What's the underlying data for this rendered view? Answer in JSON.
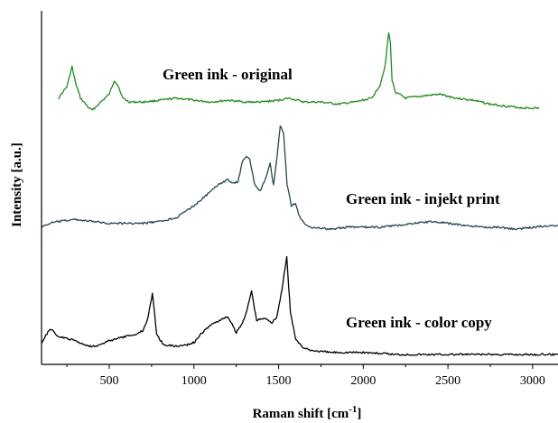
{
  "chart_data": {
    "type": "line",
    "xlabel": "Raman shift [cm",
    "xlabel_sup": "-1",
    "xlabel_end": "]",
    "ylabel": "Intensity [a.u.]",
    "xlim": [
      100,
      3150
    ],
    "ylim": [
      0,
      100
    ],
    "xticks": [
      500,
      1000,
      1500,
      2000,
      2500,
      3000
    ],
    "xtick_labels": [
      "500",
      "1000",
      "1500",
      "2000",
      "2500",
      "3000"
    ],
    "y_tick_labels": false,
    "grid": false,
    "series": [
      {
        "name": "Green ink - original",
        "color": "#1e8c1e",
        "x": [
          200,
          250,
          280,
          300,
          330,
          380,
          400,
          450,
          500,
          530,
          550,
          580,
          620,
          700,
          800,
          900,
          1000,
          1100,
          1200,
          1300,
          1400,
          1500,
          1560,
          1650,
          1750,
          1850,
          1950,
          2050,
          2100,
          2130,
          2150,
          2160,
          2170,
          2190,
          2250,
          2350,
          2450,
          2550,
          2650,
          2750,
          2850,
          2950,
          3040
        ],
        "y": [
          75.3,
          78.6,
          84.2,
          79.7,
          75.3,
          72.5,
          71.9,
          74.2,
          76.4,
          80.3,
          79.1,
          75.3,
          74.2,
          74.2,
          74.7,
          75.3,
          74.7,
          74.2,
          74.7,
          74.2,
          74.2,
          74.7,
          75.3,
          74.2,
          74.2,
          73.6,
          74.2,
          75.3,
          79.1,
          84.8,
          93.8,
          91.0,
          80.3,
          77.0,
          75.3,
          75.9,
          76.4,
          75.3,
          74.7,
          73.6,
          73.0,
          72.5,
          72.5
        ]
      },
      {
        "name": "Green ink - injekt print",
        "color": "#234650",
        "x": [
          100,
          150,
          200,
          300,
          400,
          500,
          600,
          700,
          800,
          900,
          1000,
          1100,
          1150,
          1200,
          1230,
          1260,
          1290,
          1310,
          1330,
          1360,
          1390,
          1420,
          1450,
          1470,
          1490,
          1510,
          1530,
          1550,
          1575,
          1600,
          1625,
          1660,
          1700,
          1800,
          1900,
          2000,
          2100,
          2200,
          2300,
          2400,
          2500,
          2600,
          2700,
          2800,
          2900,
          3000,
          3100,
          3150
        ],
        "y": [
          38.8,
          39.9,
          40.4,
          41.0,
          40.4,
          39.9,
          39.9,
          39.9,
          40.4,
          41.6,
          44.9,
          48.9,
          51.1,
          52.2,
          51.1,
          51.7,
          57.9,
          59.0,
          57.9,
          50.6,
          48.9,
          52.2,
          56.7,
          50.6,
          58.4,
          67.4,
          65.2,
          51.1,
          44.9,
          45.5,
          41.6,
          39.3,
          38.8,
          38.2,
          38.8,
          38.8,
          38.8,
          39.3,
          39.9,
          40.4,
          39.9,
          39.3,
          38.8,
          38.8,
          38.2,
          38.8,
          39.3,
          39.3
        ]
      },
      {
        "name": "Green ink - color copy",
        "color": "#000000",
        "x": [
          100,
          150,
          200,
          250,
          300,
          350,
          400,
          450,
          500,
          550,
          600,
          650,
          700,
          730,
          755,
          780,
          820,
          900,
          960,
          1000,
          1050,
          1100,
          1150,
          1200,
          1250,
          1280,
          1310,
          1340,
          1370,
          1400,
          1430,
          1460,
          1490,
          1520,
          1548,
          1570,
          1600,
          1650,
          1700,
          1800,
          1900,
          2000,
          2200,
          2400,
          2600,
          2800,
          3000,
          3150
        ],
        "y": [
          6.2,
          10.1,
          7.9,
          7.3,
          6.7,
          5.6,
          5.1,
          5.6,
          6.7,
          7.3,
          7.9,
          8.4,
          9.6,
          13.5,
          20.2,
          8.4,
          5.6,
          5.1,
          5.6,
          6.2,
          9.0,
          11.2,
          12.4,
          13.5,
          9.0,
          11.2,
          14.6,
          20.8,
          12.4,
          12.9,
          12.9,
          11.8,
          13.5,
          21.3,
          30.3,
          14.6,
          7.3,
          4.5,
          3.9,
          3.4,
          3.4,
          3.4,
          2.8,
          2.8,
          2.8,
          2.8,
          2.8,
          2.8
        ]
      }
    ]
  }
}
